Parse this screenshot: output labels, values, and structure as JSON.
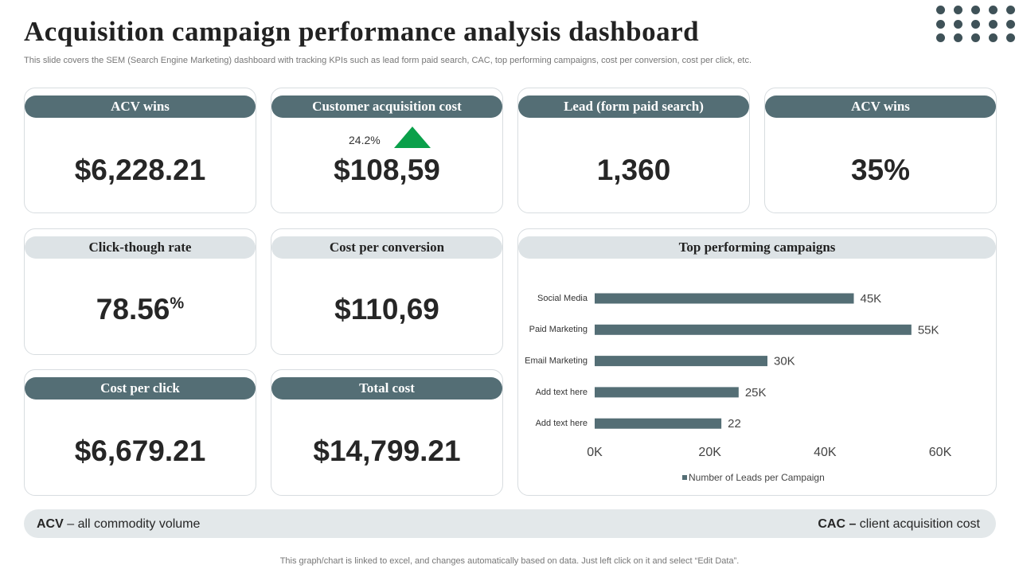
{
  "header": {
    "title": "Acquisition campaign performance analysis dashboard",
    "subtitle": "This slide covers the SEM (Search Engine Marketing) dashboard with tracking KPIs such as lead form paid search, CAC, top performing campaigns, cost per conversion, cost per click, etc."
  },
  "cards": [
    {
      "title": "ACV  wins",
      "value": "$6,228.21"
    },
    {
      "title": "Customer acquisition cost",
      "value": "$108,59",
      "change": "24.2%"
    },
    {
      "title": "Lead (form paid search)",
      "value": "1,360"
    },
    {
      "title": "ACV  wins",
      "value": "35%"
    },
    {
      "title": "Click-though rate",
      "value": "78.56",
      "value_suffix": "%"
    },
    {
      "title": "Cost per conversion",
      "value": "$110,69"
    },
    {
      "title": "Cost per click",
      "value": "$6,679.21"
    },
    {
      "title": "Total cost",
      "value": "$14,799.21"
    }
  ],
  "chart_data": {
    "type": "hbar",
    "title": "Top performing campaigns",
    "categories": [
      "Social Media",
      "Paid Marketing",
      "Email Marketing",
      "Add text here",
      "Add text here"
    ],
    "series": [
      {
        "name": "Number of Leads per Campaign",
        "color": "#546e75",
        "values": [
          45,
          55,
          30,
          25,
          22
        ],
        "value_labels": [
          "45K",
          "55K",
          "30K",
          "25K",
          "22"
        ]
      }
    ],
    "xlim": [
      0,
      60
    ],
    "xticks": [
      {
        "value": 0,
        "label": "0K"
      },
      {
        "value": 20,
        "label": "20K"
      },
      {
        "value": 40,
        "label": "40K"
      },
      {
        "value": 60,
        "label": "60K"
      }
    ],
    "legend": "bottom"
  },
  "footer": {
    "left_term": "ACV",
    "left_text": " – all commodity volume",
    "right_term": "CAC –",
    "right_text": " client acquisition cost",
    "note": "This graph/chart is linked to excel, and changes automatically based on data. Just left click on it and select “Edit Data”."
  }
}
